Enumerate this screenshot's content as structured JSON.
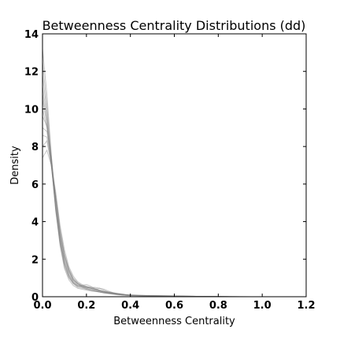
{
  "chart_data": {
    "type": "line",
    "title": "Betweenness Centrality Distributions (dd)",
    "xlabel": "Betweenness Centrality",
    "ylabel": "Density",
    "xlim": [
      0.0,
      1.2
    ],
    "ylim": [
      0,
      14
    ],
    "xticks": [
      "0.0",
      "0.2",
      "0.4",
      "0.6",
      "0.8",
      "1.0",
      "1.2"
    ],
    "yticks": [
      "0",
      "2",
      "4",
      "6",
      "8",
      "10",
      "12",
      "14"
    ],
    "grid": false,
    "legend": "none",
    "line_color": "#808080",
    "x": [
      0.0,
      0.02,
      0.04,
      0.06,
      0.08,
      0.1,
      0.12,
      0.14,
      0.16,
      0.18,
      0.2,
      0.22,
      0.24,
      0.26,
      0.28,
      0.3,
      0.32,
      0.34,
      0.36,
      0.38,
      0.4,
      0.45,
      0.5,
      0.55,
      0.6,
      0.65,
      0.7,
      0.75,
      0.8,
      0.85,
      0.9,
      0.95,
      1.0
    ],
    "series": [
      {
        "values": [
          10.5,
          9.2,
          7.0,
          4.8,
          3.0,
          1.9,
          1.2,
          0.8,
          0.6,
          0.5,
          0.4,
          0.35,
          0.3,
          0.25,
          0.2,
          0.18,
          0.15,
          0.12,
          0.1,
          0.08,
          0.06,
          0.05,
          0.04,
          0.03,
          0.03,
          0.02,
          0.01,
          0.01,
          0.0,
          0.0,
          0.0,
          0.0,
          0.0
        ]
      },
      {
        "values": [
          12.5,
          10.2,
          7.5,
          5.0,
          3.1,
          1.8,
          1.1,
          0.75,
          0.6,
          0.55,
          0.5,
          0.45,
          0.4,
          0.35,
          0.3,
          0.25,
          0.2,
          0.15,
          0.12,
          0.1,
          0.08,
          0.06,
          0.05,
          0.04,
          0.03,
          0.02,
          0.02,
          0.01,
          0.01,
          0.0,
          0.0,
          0.0,
          0.0
        ]
      },
      {
        "values": [
          9.0,
          8.8,
          7.2,
          5.2,
          3.3,
          2.1,
          1.4,
          0.9,
          0.7,
          0.55,
          0.45,
          0.35,
          0.3,
          0.25,
          0.22,
          0.2,
          0.18,
          0.15,
          0.12,
          0.1,
          0.09,
          0.07,
          0.05,
          0.04,
          0.04,
          0.03,
          0.02,
          0.01,
          0.01,
          0.01,
          0.0,
          0.0,
          0.0
        ]
      },
      {
        "values": [
          11.2,
          9.6,
          7.1,
          4.6,
          2.8,
          1.6,
          1.0,
          0.7,
          0.55,
          0.6,
          0.65,
          0.55,
          0.4,
          0.3,
          0.25,
          0.2,
          0.16,
          0.13,
          0.1,
          0.08,
          0.07,
          0.05,
          0.04,
          0.03,
          0.02,
          0.02,
          0.01,
          0.01,
          0.0,
          0.0,
          0.0,
          0.0,
          0.0
        ]
      },
      {
        "values": [
          8.0,
          8.3,
          7.0,
          5.4,
          3.6,
          2.3,
          1.5,
          1.0,
          0.75,
          0.6,
          0.5,
          0.45,
          0.4,
          0.45,
          0.4,
          0.3,
          0.22,
          0.16,
          0.12,
          0.1,
          0.08,
          0.06,
          0.05,
          0.05,
          0.04,
          0.03,
          0.02,
          0.01,
          0.01,
          0.0,
          0.0,
          0.0,
          0.0
        ]
      },
      {
        "values": [
          13.2,
          10.8,
          7.6,
          4.7,
          2.7,
          1.5,
          0.9,
          0.6,
          0.45,
          0.4,
          0.35,
          0.3,
          0.28,
          0.25,
          0.22,
          0.18,
          0.15,
          0.12,
          0.1,
          0.08,
          0.06,
          0.05,
          0.04,
          0.04,
          0.03,
          0.02,
          0.02,
          0.01,
          0.01,
          0.0,
          0.0,
          0.0,
          0.0
        ]
      },
      {
        "values": [
          10.0,
          9.0,
          7.3,
          5.1,
          3.2,
          2.0,
          1.3,
          0.85,
          0.65,
          0.55,
          0.5,
          0.5,
          0.45,
          0.35,
          0.28,
          0.22,
          0.18,
          0.14,
          0.11,
          0.09,
          0.07,
          0.06,
          0.05,
          0.04,
          0.03,
          0.02,
          0.02,
          0.01,
          0.01,
          0.0,
          0.0,
          0.0,
          0.0
        ]
      },
      {
        "values": [
          7.4,
          7.8,
          7.0,
          5.6,
          3.8,
          2.5,
          1.6,
          1.1,
          0.8,
          0.65,
          0.55,
          0.45,
          0.35,
          0.3,
          0.28,
          0.25,
          0.22,
          0.18,
          0.14,
          0.1,
          0.08,
          0.06,
          0.05,
          0.04,
          0.03,
          0.03,
          0.02,
          0.01,
          0.01,
          0.01,
          0.0,
          0.0,
          0.0
        ]
      },
      {
        "values": [
          11.8,
          9.9,
          7.2,
          4.6,
          2.9,
          1.7,
          1.05,
          0.7,
          0.5,
          0.45,
          0.4,
          0.35,
          0.3,
          0.25,
          0.2,
          0.16,
          0.13,
          0.1,
          0.08,
          0.07,
          0.06,
          0.05,
          0.04,
          0.03,
          0.03,
          0.02,
          0.01,
          0.01,
          0.0,
          0.0,
          0.0,
          0.0,
          0.0
        ]
      },
      {
        "values": [
          9.6,
          9.1,
          7.4,
          5.3,
          3.4,
          2.2,
          1.35,
          0.9,
          0.7,
          0.6,
          0.55,
          0.5,
          0.5,
          0.45,
          0.35,
          0.25,
          0.18,
          0.13,
          0.1,
          0.08,
          0.07,
          0.06,
          0.05,
          0.04,
          0.03,
          0.02,
          0.02,
          0.01,
          0.01,
          0.0,
          0.0,
          0.0,
          0.0
        ]
      },
      {
        "values": [
          10.8,
          9.4,
          7.0,
          4.7,
          3.0,
          1.8,
          1.15,
          0.75,
          0.55,
          0.5,
          0.45,
          0.4,
          0.35,
          0.3,
          0.24,
          0.2,
          0.17,
          0.14,
          0.12,
          0.1,
          0.08,
          0.07,
          0.06,
          0.05,
          0.04,
          0.03,
          0.02,
          0.02,
          0.01,
          0.01,
          0.01,
          0.0,
          0.0
        ]
      },
      {
        "values": [
          8.6,
          8.5,
          7.1,
          5.3,
          3.5,
          2.2,
          1.45,
          0.95,
          0.7,
          0.55,
          0.5,
          0.45,
          0.4,
          0.32,
          0.26,
          0.22,
          0.2,
          0.18,
          0.15,
          0.12,
          0.1,
          0.08,
          0.06,
          0.05,
          0.04,
          0.03,
          0.02,
          0.01,
          0.01,
          0.0,
          0.0,
          0.0,
          0.0
        ]
      }
    ]
  }
}
